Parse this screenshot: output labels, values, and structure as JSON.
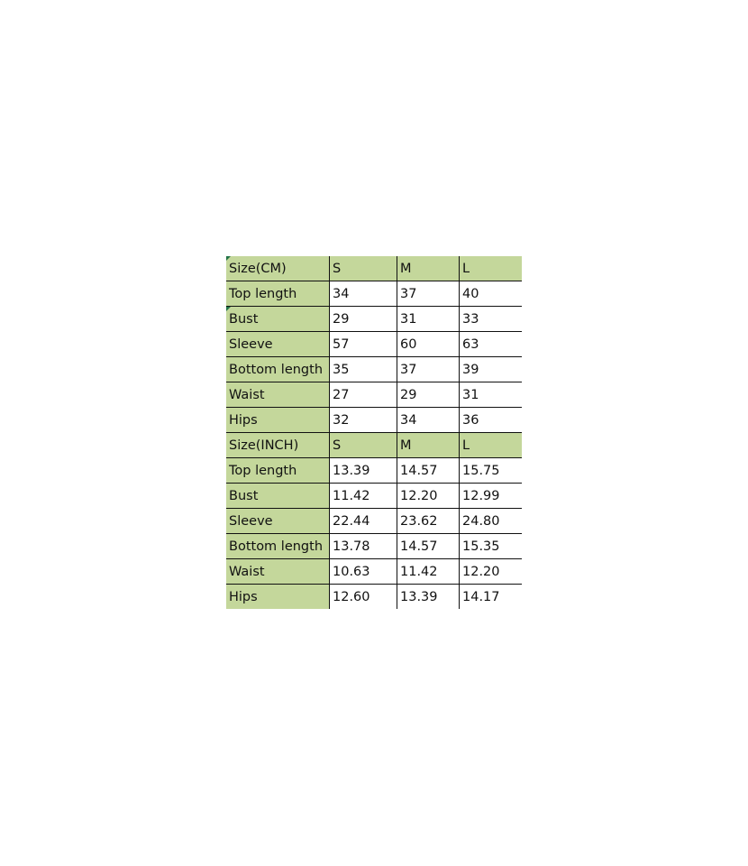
{
  "table": {
    "header_color": "#c4d79b",
    "sections": [
      {
        "header": [
          "Size(CM)",
          "S",
          "M",
          "L"
        ],
        "rows": [
          [
            "Top length",
            "34",
            "37",
            "40"
          ],
          [
            "Bust",
            "29",
            "31",
            "33"
          ],
          [
            "Sleeve",
            "57",
            "60",
            "63"
          ],
          [
            "Bottom length",
            "35",
            "37",
            "39"
          ],
          [
            "Waist",
            "27",
            "29",
            "31"
          ],
          [
            "Hips",
            "32",
            "34",
            "36"
          ]
        ]
      },
      {
        "header": [
          "Size(INCH)",
          "S",
          "M",
          "L"
        ],
        "rows": [
          [
            "Top length",
            "13.39",
            "14.57",
            "15.75"
          ],
          [
            "Bust",
            "11.42",
            "12.20",
            "12.99"
          ],
          [
            "Sleeve",
            "22.44",
            "23.62",
            "24.80"
          ],
          [
            "Bottom length",
            "13.78",
            "14.57",
            "15.35"
          ],
          [
            "Waist",
            "10.63",
            "11.42",
            "12.20"
          ],
          [
            "Hips",
            "12.60",
            "13.39",
            "14.17"
          ]
        ]
      }
    ]
  }
}
